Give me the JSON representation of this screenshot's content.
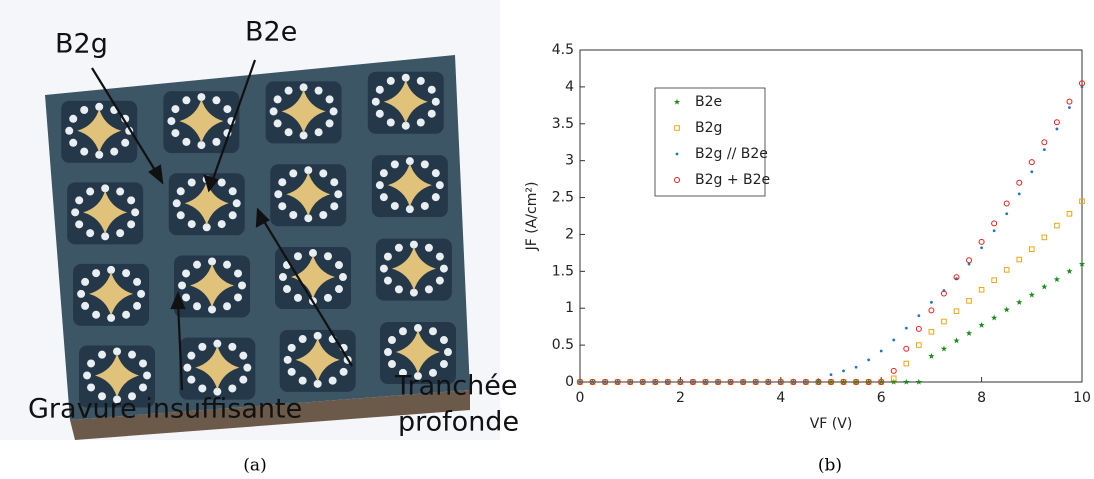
{
  "figure": {
    "panel_a": {
      "label_b2g": "B2g",
      "label_b2e": "B2e",
      "label_trench_1": "Tranchée",
      "label_trench_2": "profonde",
      "label_etch": "Gravure insuffisante"
    },
    "caption_a": "(a)",
    "caption_b": "(b)"
  },
  "chart_data": {
    "type": "scatter",
    "x_label": "VF (V)",
    "y_label": "JF (A/cm²)",
    "x": [
      0,
      0.25,
      0.5,
      0.75,
      1,
      1.25,
      1.5,
      1.75,
      2,
      2.25,
      2.5,
      2.75,
      3,
      3.25,
      3.5,
      3.75,
      4,
      4.25,
      4.5,
      4.75,
      5,
      5.25,
      5.5,
      5.75,
      6,
      6.25,
      6.5,
      6.75,
      7,
      7.25,
      7.5,
      7.75,
      8,
      8.25,
      8.5,
      8.75,
      9,
      9.25,
      9.5,
      9.75,
      10
    ],
    "series": [
      {
        "name": "B2e",
        "color": "#1a8a1a",
        "marker": "star",
        "values": [
          0,
          0,
          0,
          0,
          0,
          0,
          0,
          0,
          0,
          0,
          0,
          0,
          0,
          0,
          0,
          0,
          0,
          0,
          0,
          0,
          0,
          0,
          0,
          0,
          0,
          0,
          0,
          0,
          0.35,
          0.45,
          0.56,
          0.66,
          0.77,
          0.87,
          0.98,
          1.08,
          1.18,
          1.29,
          1.39,
          1.5,
          1.6
        ]
      },
      {
        "name": "B2g",
        "color": "#e6a817",
        "marker": "square",
        "values": [
          0,
          0,
          0,
          0,
          0,
          0,
          0,
          0,
          0,
          0,
          0,
          0,
          0,
          0,
          0,
          0,
          0,
          0,
          0,
          0,
          0,
          0,
          0,
          0,
          0,
          0.05,
          0.25,
          0.5,
          0.68,
          0.82,
          0.96,
          1.1,
          1.25,
          1.38,
          1.52,
          1.66,
          1.8,
          1.96,
          2.12,
          2.28,
          2.45
        ]
      },
      {
        "name": "B2g // B2e",
        "color": "#1f77c4",
        "marker": "dot",
        "values": [
          0,
          0,
          0,
          0,
          0,
          0,
          0,
          0,
          0,
          0,
          0,
          0,
          0,
          0,
          0,
          0,
          0,
          0,
          0,
          0.03,
          0.1,
          0.15,
          0.2,
          0.3,
          0.42,
          0.57,
          0.73,
          0.9,
          1.08,
          1.24,
          1.4,
          1.6,
          1.82,
          2.05,
          2.28,
          2.55,
          2.85,
          3.15,
          3.43,
          3.72,
          4.0
        ]
      },
      {
        "name": "B2g + B2e",
        "color": "#e0201a",
        "marker": "circle",
        "values": [
          0,
          0,
          0,
          0,
          0,
          0,
          0,
          0,
          0,
          0,
          0,
          0,
          0,
          0,
          0,
          0,
          0,
          0,
          0,
          0,
          0,
          0,
          0,
          0,
          0,
          0.15,
          0.45,
          0.72,
          0.97,
          1.2,
          1.42,
          1.65,
          1.9,
          2.15,
          2.42,
          2.7,
          2.98,
          3.25,
          3.52,
          3.8,
          4.05
        ]
      }
    ],
    "xlim": [
      0,
      10
    ],
    "xticks": [
      0,
      2,
      4,
      6,
      8,
      10
    ],
    "ylim": [
      0,
      4.5
    ],
    "yticks": [
      0,
      0.5,
      1,
      1.5,
      2,
      2.5,
      3,
      3.5,
      4,
      4.5
    ],
    "legend": "upper-left",
    "grid": false
  }
}
